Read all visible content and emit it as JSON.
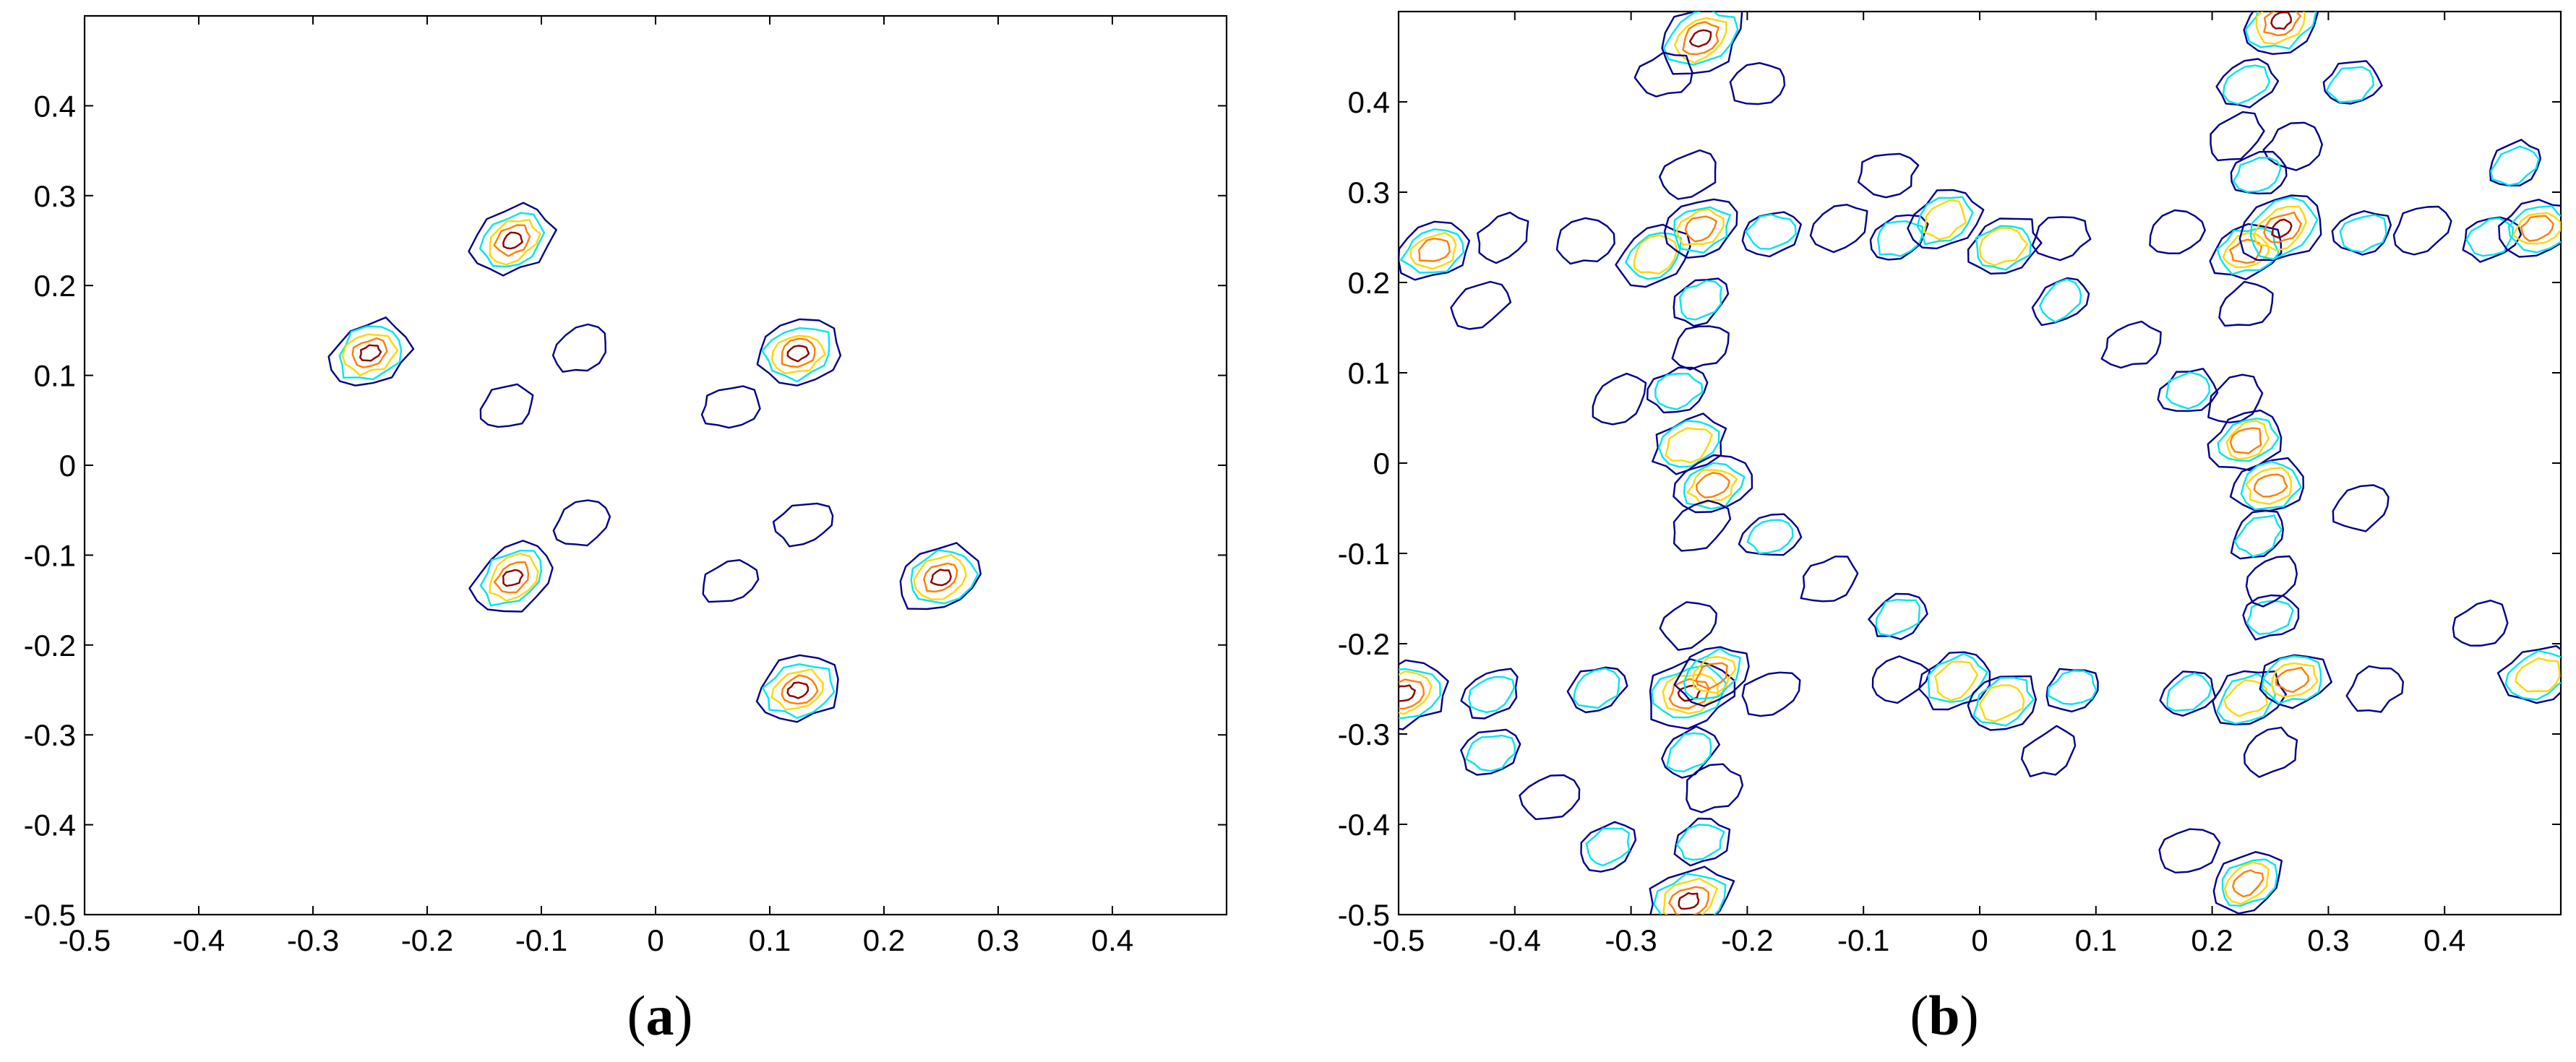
{
  "colors": {
    "levels": [
      "#00008b",
      "#00e5ee",
      "#ffd700",
      "#ff7f00",
      "#8b0000"
    ],
    "axes": "#000000",
    "background": "#ffffff"
  },
  "chart_data": [
    {
      "type": "contour",
      "panel_label": "a",
      "xlim": [
        -0.5,
        0.5
      ],
      "ylim": [
        -0.5,
        0.5
      ],
      "xticks": [
        -0.5,
        -0.4,
        -0.3,
        -0.2,
        -0.1,
        0,
        0.1,
        0.2,
        0.3,
        0.4
      ],
      "yticks": [
        -0.5,
        -0.4,
        -0.3,
        -0.2,
        -0.1,
        0,
        0.1,
        0.2,
        0.3,
        0.4
      ],
      "xtick_labels": [
        "-0.5",
        "-0.4",
        "-0.3",
        "-0.2",
        "-0.1",
        "0",
        "0.1",
        "0.2",
        "0.3",
        "0.4"
      ],
      "ytick_labels": [
        "-0.5",
        "-0.4",
        "-0.3",
        "-0.2",
        "-0.1",
        "0",
        "0.1",
        "0.2",
        "0.3",
        "0.4"
      ],
      "grid": false,
      "peaks": [
        {
          "x": -0.125,
          "y": 0.25,
          "levels": 5
        },
        {
          "x": -0.25,
          "y": 0.125,
          "levels": 5
        },
        {
          "x": 0.125,
          "y": 0.125,
          "levels": 5
        },
        {
          "x": -0.125,
          "y": -0.125,
          "levels": 5
        },
        {
          "x": 0.25,
          "y": -0.125,
          "levels": 5
        },
        {
          "x": 0.125,
          "y": -0.25,
          "levels": 5
        },
        {
          "x": -0.065,
          "y": 0.13,
          "levels": 1
        },
        {
          "x": -0.13,
          "y": 0.065,
          "levels": 1
        },
        {
          "x": 0.065,
          "y": 0.065,
          "levels": 1
        },
        {
          "x": -0.065,
          "y": -0.065,
          "levels": 1
        },
        {
          "x": 0.065,
          "y": -0.13,
          "levels": 1
        },
        {
          "x": 0.13,
          "y": -0.065,
          "levels": 1
        }
      ]
    },
    {
      "type": "contour",
      "panel_label": "b",
      "xlim": [
        -0.5,
        0.5
      ],
      "ylim": [
        -0.5,
        0.5
      ],
      "xticks": [
        -0.5,
        -0.4,
        -0.3,
        -0.2,
        -0.1,
        0,
        0.1,
        0.2,
        0.3,
        0.4
      ],
      "yticks": [
        -0.5,
        -0.4,
        -0.3,
        -0.2,
        -0.1,
        0,
        0.1,
        0.2,
        0.3,
        0.4
      ],
      "xtick_labels": [
        "-0.5",
        "-0.4",
        "-0.3",
        "-0.2",
        "-0.1",
        "0",
        "0.1",
        "0.2",
        "0.3",
        "0.4"
      ],
      "ytick_labels": [
        "-0.5",
        "-0.4",
        "-0.3",
        "-0.2",
        "-0.1",
        "0",
        "0.1",
        "0.2",
        "0.3",
        "0.4"
      ],
      "grid": false,
      "peaks": [
        {
          "x": -0.24,
          "y": 0.47,
          "levels": 5
        },
        {
          "x": -0.27,
          "y": 0.43,
          "levels": 1
        },
        {
          "x": -0.19,
          "y": 0.42,
          "levels": 1
        },
        {
          "x": 0.26,
          "y": 0.49,
          "levels": 5
        },
        {
          "x": 0.23,
          "y": 0.42,
          "levels": 2
        },
        {
          "x": 0.32,
          "y": 0.42,
          "levels": 2
        },
        {
          "x": 0.22,
          "y": 0.36,
          "levels": 1
        },
        {
          "x": 0.27,
          "y": 0.35,
          "levels": 1
        },
        {
          "x": 0.24,
          "y": 0.32,
          "levels": 2
        },
        {
          "x": 0.46,
          "y": 0.33,
          "levels": 2
        },
        {
          "x": -0.25,
          "y": 0.32,
          "levels": 1
        },
        {
          "x": -0.47,
          "y": 0.235,
          "levels": 4
        },
        {
          "x": -0.41,
          "y": 0.25,
          "levels": 1
        },
        {
          "x": -0.43,
          "y": 0.175,
          "levels": 1
        },
        {
          "x": -0.34,
          "y": 0.245,
          "levels": 1
        },
        {
          "x": -0.28,
          "y": 0.23,
          "levels": 3
        },
        {
          "x": -0.24,
          "y": 0.26,
          "levels": 4
        },
        {
          "x": -0.18,
          "y": 0.255,
          "levels": 2
        },
        {
          "x": -0.12,
          "y": 0.26,
          "levels": 1
        },
        {
          "x": -0.07,
          "y": 0.25,
          "levels": 2
        },
        {
          "x": -0.08,
          "y": 0.32,
          "levels": 1
        },
        {
          "x": -0.03,
          "y": 0.27,
          "levels": 3
        },
        {
          "x": 0.02,
          "y": 0.24,
          "levels": 3
        },
        {
          "x": 0.07,
          "y": 0.25,
          "levels": 1
        },
        {
          "x": 0.07,
          "y": 0.18,
          "levels": 2
        },
        {
          "x": 0.17,
          "y": 0.255,
          "levels": 1
        },
        {
          "x": 0.23,
          "y": 0.235,
          "levels": 4
        },
        {
          "x": 0.26,
          "y": 0.26,
          "levels": 5
        },
        {
          "x": 0.23,
          "y": 0.175,
          "levels": 1
        },
        {
          "x": 0.33,
          "y": 0.255,
          "levels": 2
        },
        {
          "x": 0.38,
          "y": 0.26,
          "levels": 1
        },
        {
          "x": 0.44,
          "y": 0.25,
          "levels": 2
        },
        {
          "x": 0.48,
          "y": 0.26,
          "levels": 4
        },
        {
          "x": -0.24,
          "y": 0.18,
          "levels": 2
        },
        {
          "x": -0.24,
          "y": 0.13,
          "levels": 1
        },
        {
          "x": -0.26,
          "y": 0.08,
          "levels": 2
        },
        {
          "x": -0.31,
          "y": 0.07,
          "levels": 1
        },
        {
          "x": -0.25,
          "y": 0.02,
          "levels": 3
        },
        {
          "x": -0.23,
          "y": -0.025,
          "levels": 4
        },
        {
          "x": -0.24,
          "y": -0.07,
          "levels": 1
        },
        {
          "x": 0.13,
          "y": 0.13,
          "levels": 1
        },
        {
          "x": 0.18,
          "y": 0.08,
          "levels": 2
        },
        {
          "x": 0.22,
          "y": 0.07,
          "levels": 1
        },
        {
          "x": 0.23,
          "y": 0.025,
          "levels": 4
        },
        {
          "x": 0.25,
          "y": -0.025,
          "levels": 4
        },
        {
          "x": 0.24,
          "y": -0.08,
          "levels": 2
        },
        {
          "x": 0.33,
          "y": -0.05,
          "levels": 1
        },
        {
          "x": -0.18,
          "y": -0.08,
          "levels": 2
        },
        {
          "x": -0.13,
          "y": -0.13,
          "levels": 1
        },
        {
          "x": -0.07,
          "y": -0.17,
          "levels": 2
        },
        {
          "x": 0.25,
          "y": -0.17,
          "levels": 2
        },
        {
          "x": 0.25,
          "y": -0.13,
          "levels": 1
        },
        {
          "x": -0.25,
          "y": -0.18,
          "levels": 1
        },
        {
          "x": -0.495,
          "y": -0.255,
          "levels": 5
        },
        {
          "x": -0.42,
          "y": -0.255,
          "levels": 2
        },
        {
          "x": -0.33,
          "y": -0.25,
          "levels": 2
        },
        {
          "x": -0.25,
          "y": -0.255,
          "levels": 5
        },
        {
          "x": -0.23,
          "y": -0.235,
          "levels": 4
        },
        {
          "x": -0.18,
          "y": -0.255,
          "levels": 1
        },
        {
          "x": -0.07,
          "y": -0.24,
          "levels": 1
        },
        {
          "x": -0.02,
          "y": -0.24,
          "levels": 3
        },
        {
          "x": 0.02,
          "y": -0.265,
          "levels": 3
        },
        {
          "x": 0.08,
          "y": -0.25,
          "levels": 2
        },
        {
          "x": 0.18,
          "y": -0.255,
          "levels": 2
        },
        {
          "x": 0.23,
          "y": -0.26,
          "levels": 3
        },
        {
          "x": 0.27,
          "y": -0.24,
          "levels": 4
        },
        {
          "x": 0.34,
          "y": -0.25,
          "levels": 1
        },
        {
          "x": 0.43,
          "y": -0.18,
          "levels": 1
        },
        {
          "x": 0.48,
          "y": -0.235,
          "levels": 3
        },
        {
          "x": 0.06,
          "y": -0.32,
          "levels": 1
        },
        {
          "x": 0.25,
          "y": -0.32,
          "levels": 1
        },
        {
          "x": -0.42,
          "y": -0.32,
          "levels": 2
        },
        {
          "x": -0.25,
          "y": -0.32,
          "levels": 2
        },
        {
          "x": -0.23,
          "y": -0.36,
          "levels": 1
        },
        {
          "x": -0.37,
          "y": -0.37,
          "levels": 1
        },
        {
          "x": -0.32,
          "y": -0.425,
          "levels": 2
        },
        {
          "x": -0.24,
          "y": -0.42,
          "levels": 2
        },
        {
          "x": 0.18,
          "y": -0.43,
          "levels": 1
        },
        {
          "x": 0.23,
          "y": -0.465,
          "levels": 4
        },
        {
          "x": -0.25,
          "y": -0.485,
          "levels": 5
        }
      ]
    }
  ]
}
